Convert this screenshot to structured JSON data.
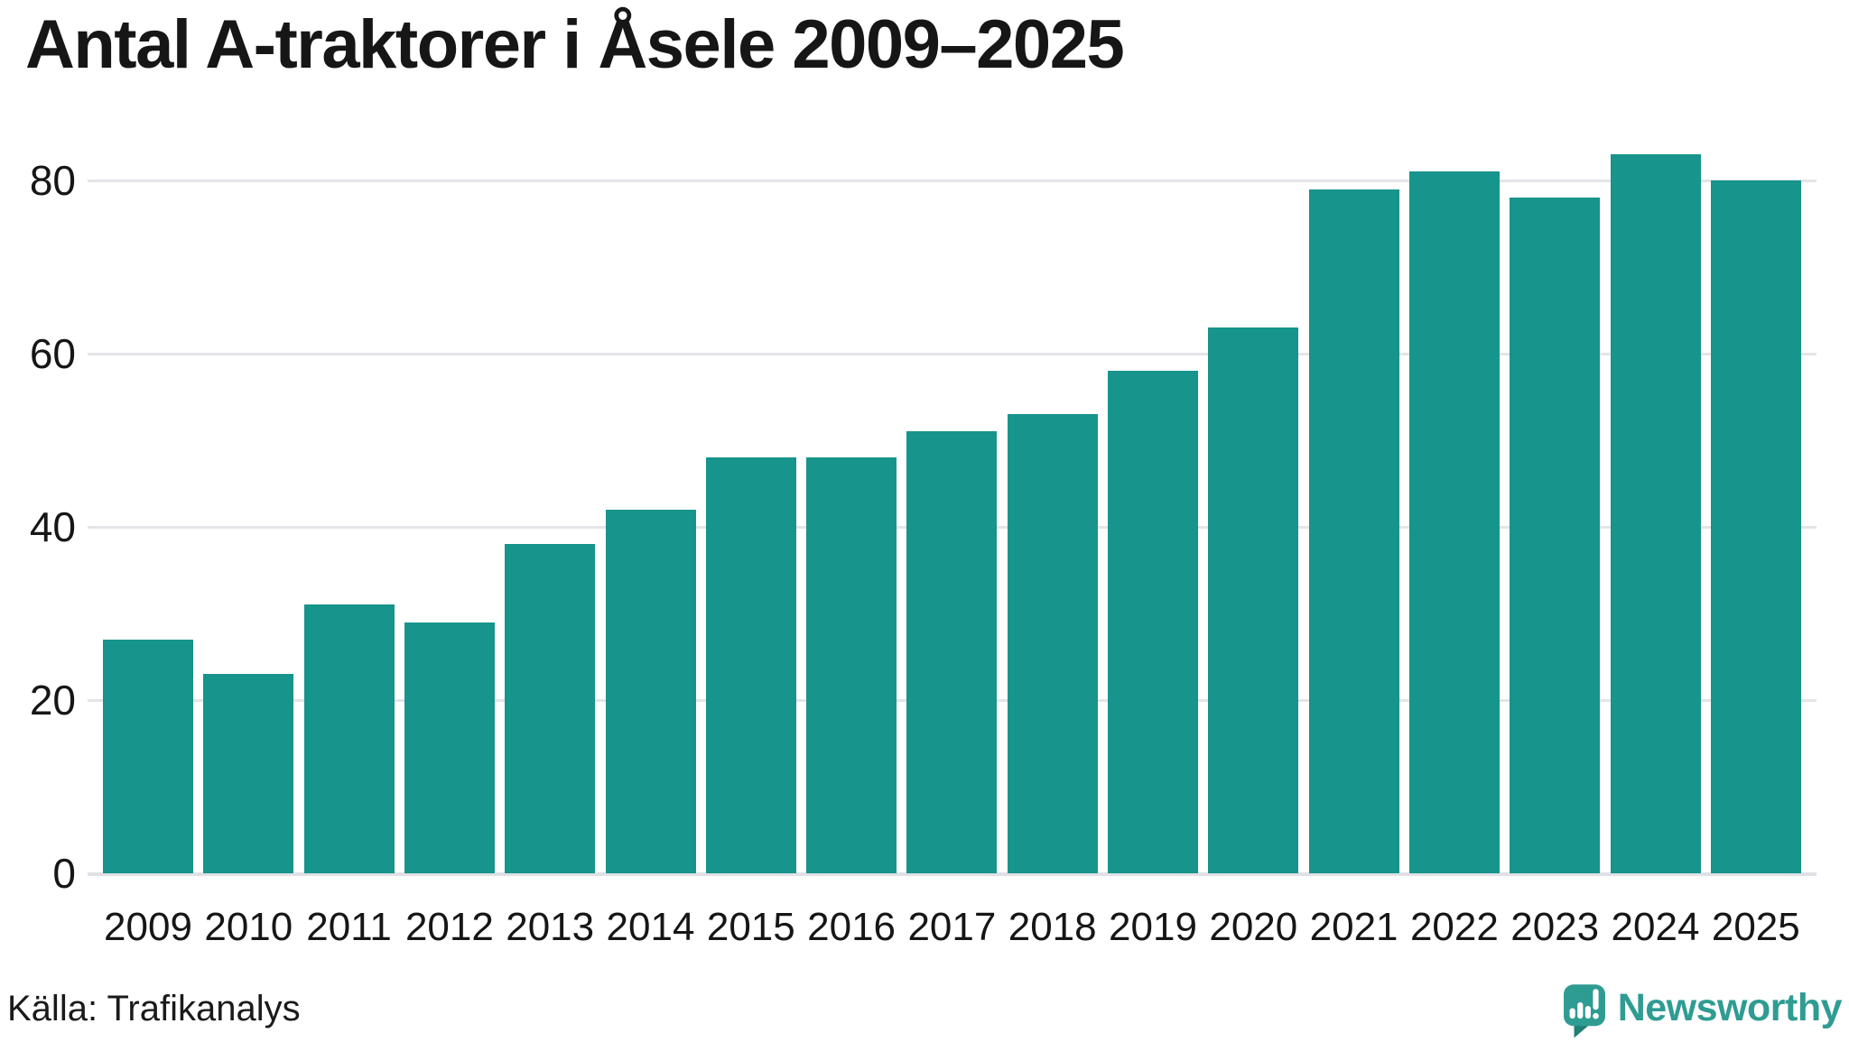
{
  "title": "Antal A-traktorer i Åsele 2009–2025",
  "source": "Källa: Trafikanalys",
  "branding": {
    "logo_text": "Newsworthy",
    "logo_icon": "newsworthy-speech-bubble-barchart-icon"
  },
  "colors": {
    "bar": "#17948b",
    "grid": "#e4e4e9",
    "text": "#161616",
    "logo_teal": "#2f9c93",
    "logo_tail_dark": "#1f7e76"
  },
  "chart_data": {
    "type": "bar",
    "title": "Antal A-traktorer i Åsele 2009–2025",
    "categories": [
      "2009",
      "2010",
      "2011",
      "2012",
      "2013",
      "2014",
      "2015",
      "2016",
      "2017",
      "2018",
      "2019",
      "2020",
      "2021",
      "2022",
      "2023",
      "2024",
      "2025"
    ],
    "values": [
      27,
      23,
      31,
      29,
      38,
      42,
      48,
      48,
      51,
      53,
      58,
      63,
      79,
      81,
      78,
      83,
      80
    ],
    "xlabel": "",
    "ylabel": "",
    "ylim": [
      0,
      86
    ],
    "yticks": [
      0,
      20,
      40,
      60,
      80
    ],
    "grid": "horizontal",
    "legend": "none",
    "bar_color": "#17948b",
    "source": "Källa: Trafikanalys"
  }
}
